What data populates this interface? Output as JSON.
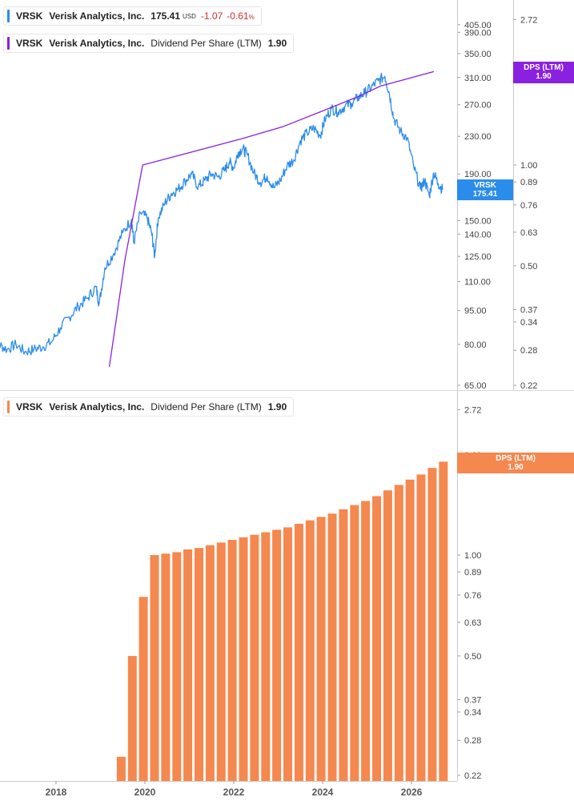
{
  "legends": {
    "price": {
      "ticker": "VRSK",
      "company": "Verisk Analytics, Inc.",
      "price": "175.41",
      "currency": "USD",
      "change": "-1.07",
      "change_pct": "-0.61",
      "pct_sign": "%",
      "color": "#2a8ceb"
    },
    "dps_top": {
      "ticker": "VRSK",
      "company": "Verisk Analytics, Inc.",
      "metric": "Dividend Per Share (LTM)",
      "value": "1.90",
      "color": "#8a21e0"
    },
    "dps_bottom": {
      "ticker": "VRSK",
      "company": "Verisk Analytics, Inc.",
      "metric": "Dividend Per Share (LTM)",
      "value": "1.90",
      "color": "#f4884f"
    }
  },
  "tags": {
    "dps_top": {
      "line1": "DPS (LTM)",
      "line2": "1.90",
      "color": "#8a21e0"
    },
    "price": {
      "line1": "VRSK",
      "line2": "175.41",
      "color": "#2a8ceb"
    },
    "dps_bottom": {
      "line1": "DPS (LTM)",
      "line2": "1.90",
      "color": "#f4884f"
    }
  },
  "chart_data": [
    {
      "type": "line",
      "title": "VRSK Verisk Analytics, Inc. 175.41 USD",
      "log_scale": true,
      "series": [
        {
          "name": "VRSK",
          "color": "#2a8ceb",
          "axis": "price",
          "x": [
            2016.5,
            2016.7,
            2016.9,
            2017.1,
            2017.3,
            2017.5,
            2017.7,
            2017.9,
            2018.1,
            2018.3,
            2018.5,
            2018.7,
            2018.9,
            2018.97,
            2019.1,
            2019.3,
            2019.5,
            2019.7,
            2019.75,
            2019.9,
            2020.05,
            2020.15,
            2020.22,
            2020.3,
            2020.45,
            2020.6,
            2020.75,
            2020.9,
            2021.05,
            2021.2,
            2021.35,
            2021.5,
            2021.65,
            2021.8,
            2021.9,
            2022.0,
            2022.1,
            2022.2,
            2022.3,
            2022.45,
            2022.6,
            2022.75,
            2022.9,
            2023.05,
            2023.2,
            2023.35,
            2023.5,
            2023.65,
            2023.8,
            2023.95,
            2024.05,
            2024.2,
            2024.35,
            2024.5,
            2024.65,
            2024.8,
            2024.95,
            2025.1,
            2025.25,
            2025.4,
            2025.5,
            2025.6,
            2025.75,
            2025.9,
            2026.05,
            2026.2,
            2026.3,
            2026.4,
            2026.5,
            2026.6,
            2026.7
          ],
          "values": [
            79,
            80,
            78,
            80,
            77,
            78,
            79,
            81,
            87,
            92,
            97,
            101,
            107,
            98,
            118,
            127,
            141,
            151,
            134,
            156,
            152,
            141,
            125,
            152,
            164,
            172,
            176,
            183,
            190,
            178,
            184,
            190,
            187,
            194,
            202,
            196,
            212,
            216,
            210,
            191,
            182,
            188,
            177,
            184,
            198,
            204,
            225,
            234,
            240,
            231,
            250,
            265,
            260,
            268,
            272,
            280,
            287,
            295,
            305,
            312,
            286,
            252,
            236,
            228,
            197,
            176,
            184,
            170,
            191,
            181,
            175.41
          ]
        },
        {
          "name": "Dividend Per Share (LTM)",
          "color": "#8a21e0",
          "axis": "dps",
          "x": [
            2019.2,
            2019.55,
            2019.95,
            2022.2,
            2023.1,
            2024.0,
            2024.8,
            2025.3,
            2026.5
          ],
          "values": [
            0.25,
            0.52,
            1.0,
            1.2,
            1.3,
            1.45,
            1.6,
            1.72,
            1.9
          ]
        }
      ],
      "price_axis_ticks": [
        "65.00",
        "80.00",
        "95.00",
        "110.00",
        "125.00",
        "140.00",
        "150.00",
        "190.00",
        "230.00",
        "270.00",
        "310.00",
        "350.00",
        "390.00",
        "405.00"
      ],
      "dps_axis_ticks": [
        "0.22",
        "0.28",
        "0.34",
        "0.37",
        "0.50",
        "0.63",
        "0.76",
        "0.89",
        "1.00",
        "2.72"
      ]
    },
    {
      "type": "bar",
      "title": "VRSK Verisk Analytics, Inc. Dividend Per Share (LTM) 1.90",
      "log_scale": true,
      "series": [
        {
          "name": "Dividend Per Share (LTM)",
          "color": "#f4884f",
          "x": [
            2019.25,
            2019.5,
            2019.75,
            2020.0,
            2020.25,
            2020.5,
            2020.75,
            2021.0,
            2021.25,
            2021.5,
            2021.75,
            2022.0,
            2022.25,
            2022.5,
            2022.75,
            2023.0,
            2023.25,
            2023.5,
            2023.75,
            2024.0,
            2024.25,
            2024.5,
            2024.75,
            2025.0,
            2025.25,
            2025.5,
            2025.75,
            2026.0,
            2026.25,
            2026.5
          ],
          "values": [
            0.25,
            0.5,
            0.75,
            1.0,
            1.01,
            1.02,
            1.04,
            1.05,
            1.07,
            1.09,
            1.11,
            1.13,
            1.15,
            1.17,
            1.19,
            1.21,
            1.24,
            1.27,
            1.3,
            1.33,
            1.37,
            1.41,
            1.45,
            1.5,
            1.56,
            1.62,
            1.68,
            1.74,
            1.82,
            1.9
          ]
        }
      ],
      "dps_axis_ticks": [
        "0.22",
        "0.28",
        "0.34",
        "0.37",
        "0.50",
        "0.63",
        "0.76",
        "0.89",
        "1.00",
        "2.72"
      ],
      "x_ticks": [
        "2018",
        "2020",
        "2022",
        "2024",
        "2026"
      ]
    }
  ]
}
